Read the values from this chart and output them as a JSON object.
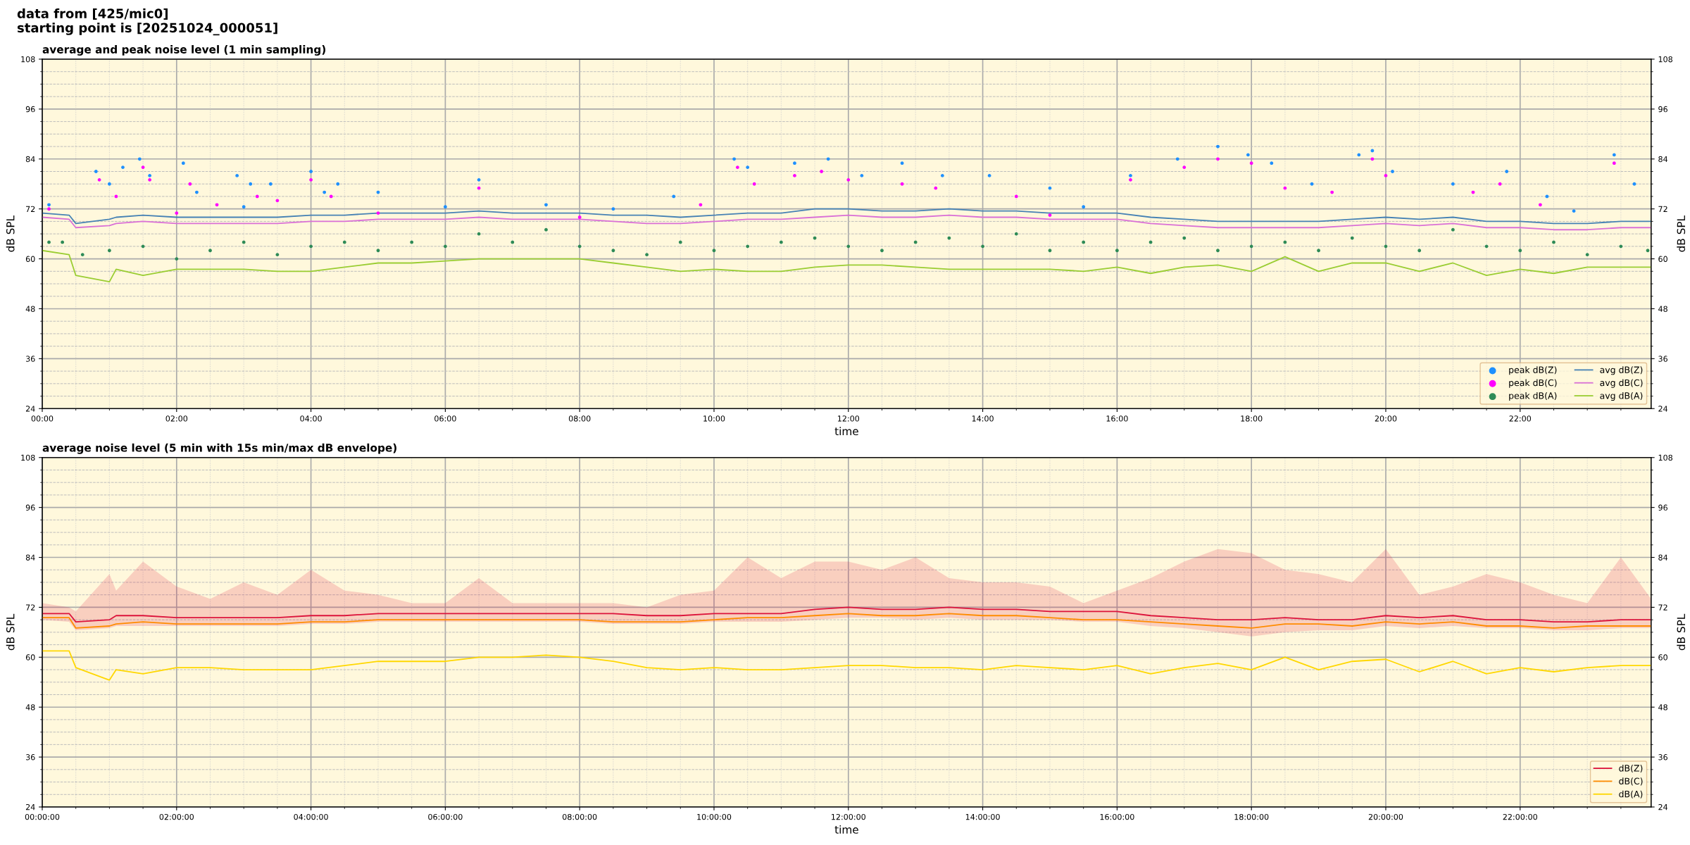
{
  "chart_data": [
    {
      "type": "line",
      "title": "average and peak noise level (1 min sampling)",
      "annotations": [
        "data from [425/mic0]\nstarting point is [20251024_000051]"
      ],
      "xlabel": "time",
      "ylabel": "dB SPL",
      "y2label": "dB SPL",
      "x": [
        0,
        0.4,
        0.5,
        1,
        1.1,
        1.5,
        2,
        2.5,
        3,
        3.5,
        4,
        4.5,
        5,
        5.5,
        6,
        6.5,
        7,
        7.5,
        8,
        8.5,
        9,
        9.5,
        10,
        10.5,
        11,
        11.5,
        12,
        12.5,
        13,
        13.5,
        14,
        14.5,
        15,
        15.5,
        16,
        16.5,
        17,
        17.5,
        18,
        18.5,
        19,
        19.5,
        20,
        20.5,
        21,
        21.5,
        22,
        22.5,
        23,
        23.5,
        23.95
      ],
      "series": [
        {
          "name": "peak dB(Z)",
          "type": "scatter",
          "color": "#1e90ff",
          "x": [
            0.1,
            0.8,
            1.0,
            1.2,
            1.45,
            1.6,
            2.1,
            2.3,
            2.9,
            3.0,
            3.1,
            3.4,
            4.0,
            4.2,
            4.4,
            5.0,
            6.0,
            6.5,
            7.5,
            8.5,
            9.4,
            10.3,
            10.5,
            11.2,
            11.7,
            12.2,
            12.8,
            13.4,
            14.1,
            15.0,
            15.5,
            16.2,
            16.9,
            17.5,
            17.95,
            18.3,
            18.9,
            19.6,
            19.8,
            20.1,
            21.0,
            21.8,
            22.4,
            22.8,
            23.4,
            23.7
          ],
          "values": [
            73,
            81,
            78,
            82,
            84,
            80,
            83,
            76,
            80,
            72.5,
            78,
            78,
            81,
            76,
            78,
            76,
            72.5,
            79,
            73,
            72,
            75,
            84,
            82,
            83,
            84,
            80,
            83,
            80,
            80,
            77,
            72.5,
            80,
            84,
            87,
            85,
            83,
            78,
            85,
            86,
            81,
            78,
            81,
            75,
            71.5,
            85,
            78
          ]
        },
        {
          "name": "peak dB(C)",
          "type": "scatter",
          "color": "#ff00ff",
          "x": [
            0.1,
            0.85,
            1.1,
            1.5,
            1.6,
            2.0,
            2.2,
            2.6,
            3.2,
            3.5,
            4.0,
            4.3,
            5.0,
            6.5,
            8.0,
            9.8,
            10.35,
            10.6,
            11.2,
            11.6,
            12.0,
            12.8,
            13.3,
            14.5,
            15.0,
            16.2,
            17.0,
            17.5,
            18.0,
            18.5,
            19.2,
            19.8,
            20.0,
            21.3,
            21.7,
            22.3,
            23.4
          ],
          "values": [
            72,
            79,
            75,
            82,
            79,
            71,
            78,
            73,
            75,
            74,
            79,
            75,
            71,
            77,
            70,
            73,
            82,
            78,
            80,
            81,
            79,
            78,
            77,
            75,
            70.5,
            79,
            82,
            84,
            83,
            77,
            76,
            84,
            80,
            76,
            78,
            73,
            83
          ]
        },
        {
          "name": "peak dB(A)",
          "type": "scatter",
          "color": "#2e8b57",
          "x": [
            0.1,
            0.3,
            0.6,
            1.0,
            1.5,
            2.0,
            2.5,
            3.0,
            3.5,
            4.0,
            4.5,
            5.0,
            5.5,
            6.0,
            6.5,
            7.0,
            7.5,
            8.0,
            8.5,
            9.0,
            9.5,
            10.0,
            10.5,
            11.0,
            11.5,
            12.0,
            12.5,
            13.0,
            13.5,
            14.0,
            14.5,
            15.0,
            15.5,
            16.0,
            16.5,
            17.0,
            17.5,
            18.0,
            18.5,
            19.0,
            19.5,
            20.0,
            20.5,
            21.0,
            21.5,
            22.0,
            22.5,
            23.0,
            23.5,
            23.9
          ],
          "values": [
            64,
            64,
            61,
            62,
            63,
            60,
            62,
            64,
            61,
            63,
            64,
            62,
            64,
            63,
            66,
            64,
            67,
            63,
            62,
            61,
            64,
            62,
            63,
            64,
            65,
            63,
            62,
            64,
            65,
            63,
            66,
            62,
            64,
            62,
            64,
            65,
            62,
            63,
            64,
            62,
            65,
            63,
            62,
            67,
            63,
            62,
            64,
            61,
            63,
            62
          ]
        },
        {
          "name": "avg dB(Z)",
          "color": "#4682b4",
          "values": [
            71,
            70.5,
            68.5,
            69.5,
            70,
            70.5,
            70,
            70,
            70,
            70,
            70.5,
            70.5,
            71,
            71,
            71,
            71.5,
            71,
            71,
            71,
            70.5,
            70.5,
            70,
            70.5,
            71,
            71,
            72,
            72,
            71.5,
            71.5,
            72,
            71.5,
            71.5,
            71,
            71,
            71,
            70,
            69.5,
            69,
            69,
            69,
            69,
            69.5,
            70,
            69.5,
            70,
            69,
            69,
            68.5,
            68.5,
            69,
            69
          ]
        },
        {
          "name": "avg dB(C)",
          "color": "#da70d6",
          "values": [
            70,
            69.5,
            67.5,
            68,
            68.5,
            69,
            68.5,
            68.5,
            68.5,
            68.5,
            69,
            69,
            69.5,
            69.5,
            69.5,
            70,
            69.5,
            69.5,
            69.5,
            69,
            68.5,
            68.5,
            69,
            69.5,
            69.5,
            70,
            70.5,
            70,
            70,
            70.5,
            70,
            70,
            69.5,
            69.5,
            69.5,
            68.5,
            68,
            67.5,
            67.5,
            67.5,
            67.5,
            68,
            68.5,
            68,
            68.5,
            67.5,
            67.5,
            67,
            67,
            67.5,
            67.5
          ]
        },
        {
          "name": "avg dB(A)",
          "color": "#9acd32",
          "values": [
            62,
            61,
            56,
            54.5,
            57.5,
            56,
            57.5,
            57.5,
            57.5,
            57,
            57,
            58,
            59,
            59,
            59.5,
            60,
            60,
            60,
            60,
            59,
            58,
            57,
            57.5,
            57,
            57,
            58,
            58.5,
            58.5,
            58,
            57.5,
            57.5,
            57.5,
            57.5,
            57,
            58,
            56.5,
            58,
            58.5,
            57,
            60.5,
            57,
            59,
            59,
            57,
            59,
            56,
            57.5,
            56.5,
            58,
            58,
            58
          ]
        }
      ],
      "xlim": [
        0,
        23.95
      ],
      "xticks": [
        {
          "value": 0,
          "label": "00:00"
        },
        {
          "value": 2,
          "label": "02:00"
        },
        {
          "value": 4,
          "label": "04:00"
        },
        {
          "value": 6,
          "label": "06:00"
        },
        {
          "value": 8,
          "label": "08:00"
        },
        {
          "value": 10,
          "label": "10:00"
        },
        {
          "value": 12,
          "label": "12:00"
        },
        {
          "value": 14,
          "label": "14:00"
        },
        {
          "value": 16,
          "label": "16:00"
        },
        {
          "value": 18,
          "label": "18:00"
        },
        {
          "value": 20,
          "label": "20:00"
        },
        {
          "value": 22,
          "label": "22:00"
        }
      ],
      "ylim": [
        24,
        108
      ],
      "yticks": [
        24,
        36,
        48,
        60,
        72,
        84,
        96,
        108
      ],
      "y2lim": [
        24,
        108
      ],
      "y2ticks": [
        24,
        36,
        48,
        60,
        72,
        84,
        96,
        108
      ],
      "grid": true,
      "legend": "bottom right",
      "line_style": "solid"
    },
    {
      "type": "line",
      "title": "average noise level (5 min with 15s min/max dB envelope)",
      "xlabel": "time",
      "ylabel": "dB SPL",
      "y2label": "dB SPL",
      "x": [
        0,
        0.4,
        0.5,
        1,
        1.1,
        1.5,
        2,
        2.5,
        3,
        3.5,
        4,
        4.5,
        5,
        5.5,
        6,
        6.5,
        7,
        7.5,
        8,
        8.5,
        9,
        9.5,
        10,
        10.5,
        11,
        11.5,
        12,
        12.5,
        13,
        13.5,
        14,
        14.5,
        15,
        15.5,
        16,
        16.5,
        17,
        17.5,
        18,
        18.5,
        19,
        19.5,
        20,
        20.5,
        21,
        21.5,
        22,
        22.5,
        23,
        23.5,
        23.95
      ],
      "series": [
        {
          "name": "dB(Z)",
          "color": "#dc143c",
          "values": [
            70.5,
            70.5,
            68.5,
            69,
            70,
            70,
            69.5,
            69.5,
            69.5,
            69.5,
            70,
            70,
            70.5,
            70.5,
            70.5,
            70.5,
            70.5,
            70.5,
            70.5,
            70.5,
            70,
            70,
            70.5,
            70.5,
            70.5,
            71.5,
            72,
            71.5,
            71.5,
            72,
            71.5,
            71.5,
            71,
            71,
            71,
            70,
            69.5,
            69,
            69,
            69.5,
            69,
            69,
            70,
            69.5,
            70,
            69,
            69,
            68.5,
            68.5,
            69,
            69
          ],
          "lower": [
            69,
            68.5,
            66.5,
            67,
            67.5,
            67.5,
            67.5,
            67.5,
            67.5,
            67.5,
            68,
            68,
            68.5,
            68.5,
            68.5,
            68.5,
            68.5,
            68.5,
            68.5,
            68,
            68,
            68,
            68.5,
            68.5,
            68.5,
            69,
            69.5,
            69.5,
            69,
            69.5,
            69,
            69,
            69,
            68.5,
            68.5,
            67.5,
            67,
            66,
            65,
            66,
            66.5,
            66.5,
            67.5,
            67,
            67.5,
            67,
            67,
            66.5,
            66.5,
            67,
            67
          ],
          "upper": [
            73,
            72,
            71,
            80,
            76,
            83,
            77,
            74,
            78,
            75,
            81,
            76,
            75,
            73,
            73,
            79,
            73,
            73,
            73,
            73,
            72,
            75,
            76,
            84,
            79,
            83,
            83,
            81,
            84,
            79,
            78,
            78,
            77,
            73,
            76,
            79,
            83,
            86,
            85,
            81,
            80,
            78,
            86,
            75,
            77,
            80,
            78,
            75,
            73,
            84,
            74
          ]
        },
        {
          "name": "dB(C)",
          "color": "#ff8c00",
          "values": [
            69.5,
            69.5,
            67,
            67.5,
            68,
            68.5,
            68,
            68,
            68,
            68,
            68.5,
            68.5,
            69,
            69,
            69,
            69,
            69,
            69,
            69,
            68.5,
            68.5,
            68.5,
            69,
            69.5,
            69.5,
            70,
            70.5,
            70,
            70,
            70.5,
            70,
            70,
            69.5,
            69,
            69,
            68.5,
            68,
            67.5,
            67,
            68,
            68,
            67.5,
            68.5,
            68,
            68.5,
            67.5,
            67.5,
            67,
            67.5,
            67.5,
            67.5
          ]
        },
        {
          "name": "dB(A)",
          "color": "#ffd700",
          "values": [
            61.5,
            61.5,
            57.5,
            54.5,
            57,
            56,
            57.5,
            57.5,
            57,
            57,
            57,
            58,
            59,
            59,
            59,
            60,
            60,
            60.5,
            60,
            59,
            57.5,
            57,
            57.5,
            57,
            57,
            57.5,
            58,
            58,
            57.5,
            57.5,
            57,
            58,
            57.5,
            57,
            58,
            56,
            57.5,
            58.5,
            57,
            60,
            57,
            59,
            59.5,
            56.5,
            59,
            56,
            57.5,
            56.5,
            57.5,
            58,
            58
          ]
        }
      ],
      "xlim": [
        0,
        23.95
      ],
      "xticks": [
        {
          "value": 0,
          "label": "00:00:00"
        },
        {
          "value": 2,
          "label": "02:00:00"
        },
        {
          "value": 4,
          "label": "04:00:00"
        },
        {
          "value": 6,
          "label": "06:00:00"
        },
        {
          "value": 8,
          "label": "08:00:00"
        },
        {
          "value": 10,
          "label": "10:00:00"
        },
        {
          "value": 12,
          "label": "12:00:00"
        },
        {
          "value": 14,
          "label": "14:00:00"
        },
        {
          "value": 16,
          "label": "16:00:00"
        },
        {
          "value": 18,
          "label": "18:00:00"
        },
        {
          "value": 20,
          "label": "20:00:00"
        },
        {
          "value": 22,
          "label": "22:00:00"
        }
      ],
      "ylim": [
        24,
        108
      ],
      "yticks": [
        24,
        36,
        48,
        60,
        72,
        84,
        96,
        108
      ],
      "y2lim": [
        24,
        108
      ],
      "y2ticks": [
        24,
        36,
        48,
        60,
        72,
        84,
        96,
        108
      ],
      "grid": true,
      "legend": "bottom right",
      "line_style": "solid"
    }
  ]
}
